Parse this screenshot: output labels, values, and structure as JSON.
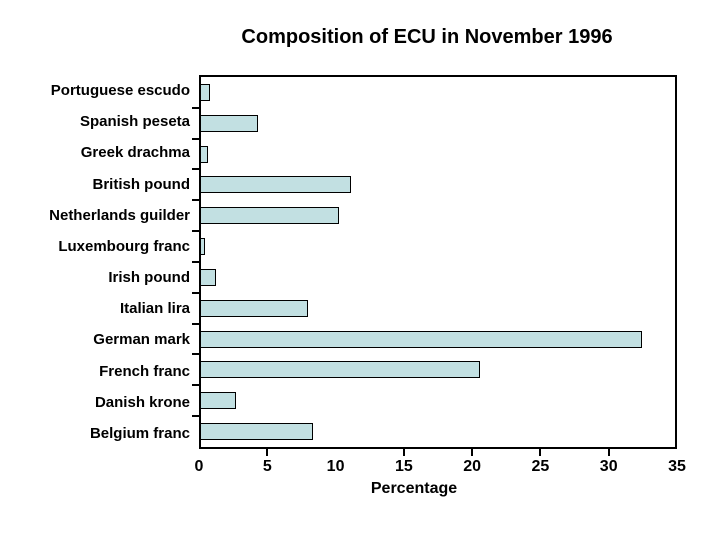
{
  "chart_data": {
    "type": "bar",
    "orientation": "horizontal",
    "title": "Composition of ECU in November 1996",
    "xlabel": "Percentage",
    "xlim": [
      0,
      35
    ],
    "xtick_labels": [
      "0",
      "5",
      "10",
      "15",
      "20",
      "25",
      "30",
      "35"
    ],
    "xtick_values": [
      0,
      5,
      10,
      15,
      20,
      25,
      30,
      35
    ],
    "xtick_marks": [
      5,
      15,
      20,
      25,
      30
    ],
    "grid": false,
    "legend": false,
    "categories": [
      "Portuguese escudo",
      "Spanish peseta",
      "Greek drachma",
      "British pound",
      "Netherlands guilder",
      "Luxembourg franc",
      "Irish pound",
      "Italian lira",
      "German mark",
      "French franc",
      "Danish krone",
      "Belgium franc"
    ],
    "values": [
      0.7,
      4.2,
      0.5,
      11.1,
      10.2,
      0.3,
      1.1,
      7.9,
      32.6,
      20.6,
      2.6,
      8.3
    ],
    "colors": {
      "bar_fill": "#c2e0e2",
      "bar_border": "#000000",
      "axis": "#000000",
      "text": "#000000",
      "background": "#ffffff"
    }
  }
}
